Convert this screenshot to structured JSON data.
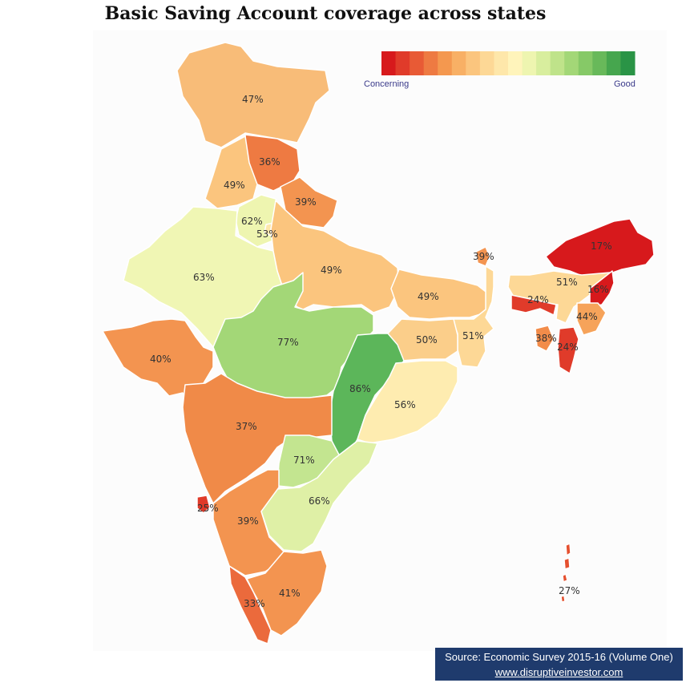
{
  "title": "Basic Saving Account coverage across states",
  "legend": {
    "low_label": "Concerning",
    "high_label": "Good",
    "colors": [
      "#d7191c",
      "#e03b2a",
      "#e85a35",
      "#ee7a42",
      "#f4984f",
      "#f8b065",
      "#fbc57e",
      "#fdd896",
      "#fee7aa",
      "#fff4bb",
      "#eef5b0",
      "#d8ee9e",
      "#bfe38a",
      "#a3d777",
      "#86c967",
      "#68b95a",
      "#46a64e",
      "#2a9446"
    ]
  },
  "regions": [
    {
      "id": "jammu-kashmir",
      "value": "47%",
      "color": "#f8bc78"
    },
    {
      "id": "himachal-pradesh",
      "value": "36%",
      "color": "#ee7a42"
    },
    {
      "id": "punjab",
      "value": "49%",
      "color": "#fbc57e"
    },
    {
      "id": "uttarakhand",
      "value": "39%",
      "color": "#f39450"
    },
    {
      "id": "haryana",
      "value": "62%",
      "color": "#eef5b0"
    },
    {
      "id": "delhi",
      "value": "53%",
      "color": "#fee7aa"
    },
    {
      "id": "rajasthan",
      "value": "63%",
      "color": "#f0f6b4"
    },
    {
      "id": "uttar-pradesh",
      "value": "49%",
      "color": "#fbc57e"
    },
    {
      "id": "bihar",
      "value": "49%",
      "color": "#fbc57e"
    },
    {
      "id": "sikkim",
      "value": "39%",
      "color": "#f39450"
    },
    {
      "id": "arunachal-pradesh",
      "value": "17%",
      "color": "#d7191c"
    },
    {
      "id": "assam",
      "value": "51%",
      "color": "#fdd896"
    },
    {
      "id": "nagaland",
      "value": "16%",
      "color": "#d7191c"
    },
    {
      "id": "meghalaya",
      "value": "24%",
      "color": "#e03b2a"
    },
    {
      "id": "manipur",
      "value": "44%",
      "color": "#f6a35a"
    },
    {
      "id": "tripura",
      "value": "38%",
      "color": "#f28c4a"
    },
    {
      "id": "mizoram",
      "value": "24%",
      "color": "#e03b2a"
    },
    {
      "id": "west-bengal",
      "value": "51%",
      "color": "#fdd896"
    },
    {
      "id": "jharkhand",
      "value": "50%",
      "color": "#fbce8a"
    },
    {
      "id": "gujarat",
      "value": "40%",
      "color": "#f39450"
    },
    {
      "id": "madhya-pradesh",
      "value": "77%",
      "color": "#a3d777"
    },
    {
      "id": "chhattisgarh",
      "value": "86%",
      "color": "#5cb65a"
    },
    {
      "id": "odisha",
      "value": "56%",
      "color": "#feecb0"
    },
    {
      "id": "maharashtra",
      "value": "37%",
      "color": "#f08a48"
    },
    {
      "id": "telangana",
      "value": "71%",
      "color": "#c3e590"
    },
    {
      "id": "andhra-pradesh",
      "value": "66%",
      "color": "#dff0a6"
    },
    {
      "id": "goa",
      "value": "25%",
      "color": "#e03b2a"
    },
    {
      "id": "karnataka",
      "value": "39%",
      "color": "#f39450"
    },
    {
      "id": "kerala",
      "value": "33%",
      "color": "#eb6a3c"
    },
    {
      "id": "tamil-nadu",
      "value": "41%",
      "color": "#f39450"
    },
    {
      "id": "andaman-nicobar",
      "value": "27%",
      "color": "#e5502f"
    }
  ],
  "source": {
    "line1": "Source: Economic Survey 2015-16 (Volume One)",
    "link": "www.disruptiveinvestor.com"
  }
}
